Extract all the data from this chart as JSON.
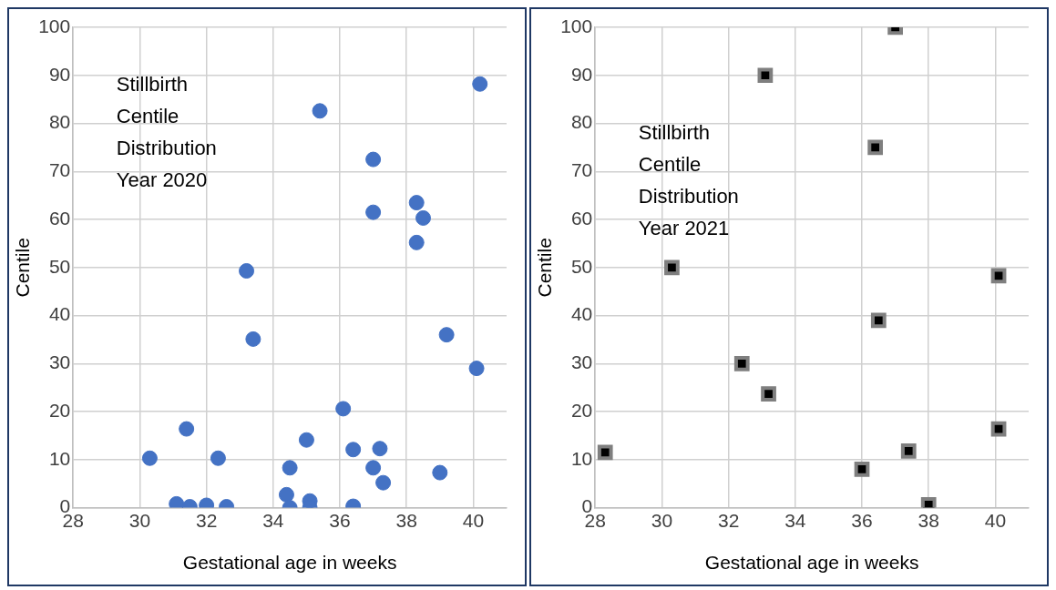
{
  "chart_data": [
    {
      "type": "scatter",
      "xlabel": "Gestational age in weeks",
      "ylabel": "Centile",
      "annotations": [
        "Stillbirth Centile Distribution Year 2020"
      ],
      "xlim": [
        28,
        41
      ],
      "xticks": [
        28,
        30,
        32,
        34,
        36,
        38,
        40
      ],
      "ylim": [
        0,
        100
      ],
      "yticks": [
        0,
        10,
        20,
        30,
        40,
        50,
        60,
        70,
        80,
        90,
        100
      ],
      "grid": true,
      "legend": false,
      "marker": "circle",
      "series": [
        {
          "color": "#4472c4",
          "x": [
            40.2,
            35.4,
            37.0,
            38.3,
            37.0,
            38.5,
            38.3,
            33.2,
            33.4,
            39.2,
            40.1,
            36.1,
            31.4,
            30.3,
            32.35,
            35.0,
            36.4,
            37.2,
            34.5,
            37.0,
            37.3,
            39.0,
            34.4,
            34.5,
            35.1,
            35.1,
            36.4,
            31.1,
            31.5,
            32.0,
            32.6
          ],
          "values": [
            88.2,
            82.6,
            72.5,
            63.5,
            61.5,
            60.3,
            55.2,
            49.3,
            35.1,
            36.0,
            29.0,
            20.6,
            16.4,
            10.3,
            10.3,
            14.1,
            12.1,
            12.3,
            8.3,
            8.3,
            5.2,
            7.3,
            2.7,
            0,
            1.4,
            0,
            0.3,
            0.8,
            0.2,
            0.5,
            0.2
          ]
        }
      ]
    },
    {
      "type": "scatter",
      "xlabel": "Gestational age in weeks",
      "ylabel": "Centile",
      "annotations": [
        "Stillbirth Centile Distribution Year 2021"
      ],
      "xlim": [
        28,
        41
      ],
      "xticks": [
        28,
        30,
        32,
        34,
        36,
        38,
        40
      ],
      "ylim": [
        0,
        100
      ],
      "yticks": [
        0,
        10,
        20,
        30,
        40,
        50,
        60,
        70,
        80,
        90,
        100
      ],
      "grid": true,
      "legend": false,
      "marker": "square",
      "series": [
        {
          "color": "#7f7f7f",
          "x": [
            37.0,
            33.1,
            36.4,
            30.3,
            40.1,
            36.5,
            32.4,
            33.2,
            28.3,
            40.1,
            37.4,
            36.0,
            38.0
          ],
          "values": [
            100,
            90,
            75.0,
            50,
            48.3,
            39.0,
            30,
            23.7,
            11.5,
            16.4,
            11.8,
            8.0,
            0.6
          ]
        }
      ]
    }
  ]
}
